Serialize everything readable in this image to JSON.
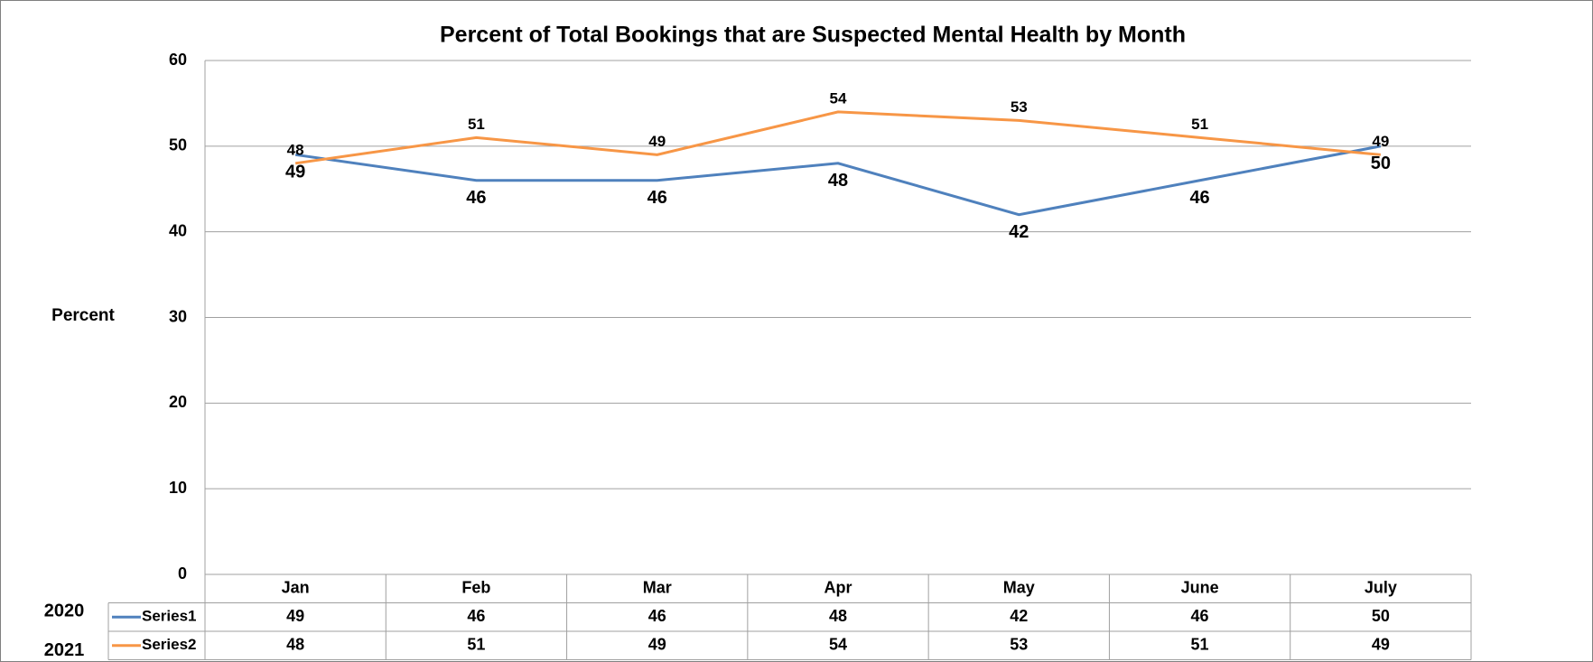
{
  "chart_data": {
    "type": "line",
    "title": "Percent of Total Bookings that are Suspected Mental Health by Month",
    "y_label": "Percent",
    "categories": [
      "Jan",
      "Feb",
      "Mar",
      "Apr",
      "May",
      "June",
      "July"
    ],
    "series": [
      {
        "name": "Series1",
        "year": "2020",
        "color": "#4f81bd",
        "values": [
          49,
          46,
          46,
          48,
          42,
          46,
          50
        ]
      },
      {
        "name": "Series2",
        "year": "2021",
        "color": "#f79646",
        "values": [
          48,
          51,
          49,
          54,
          53,
          51,
          49
        ]
      }
    ],
    "ylim": [
      0,
      60
    ],
    "yticks": [
      0,
      10,
      20,
      30,
      40,
      50,
      60
    ],
    "grid": true
  }
}
